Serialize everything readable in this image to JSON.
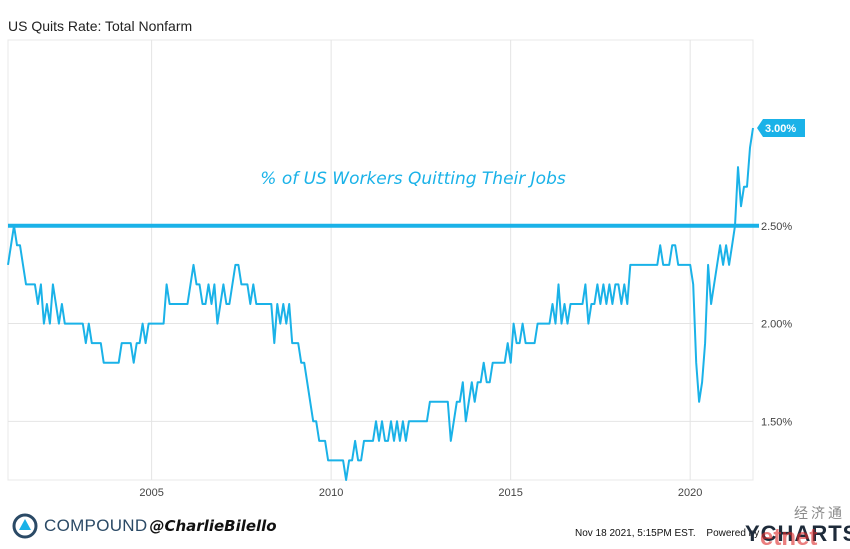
{
  "colors": {
    "series": "#1ab2e8",
    "grid": "#e4e4e4",
    "refline": "#1ab2e8",
    "brand": "#2b4a66"
  },
  "header": {
    "title": "US Quits Rate: Total Nonfarm"
  },
  "footer": {
    "brand": "COMPOUND",
    "handle": "@CharlieBilello",
    "timestamp": "Nov 18 2021, 5:15PM EST.",
    "powered_by": "Powered by",
    "provider": "YCHARTS",
    "watermark_cn": "经济通",
    "watermark_en": "etnet"
  },
  "chart_data": {
    "type": "line",
    "title": "US Quits Rate: Total Nonfarm",
    "annotation": "% of US Workers Quitting Their Jobs",
    "xlabel": "",
    "ylabel": "",
    "xlim": [
      2001.0,
      2021.75
    ],
    "ylim": [
      1.2,
      3.45
    ],
    "x_ticks": [
      2005,
      2010,
      2015,
      2020
    ],
    "y_ticks": [
      "1.50%",
      "2.00%",
      "2.50%"
    ],
    "y_tick_values": [
      1.5,
      2.0,
      2.5
    ],
    "grid": true,
    "reference_line": {
      "value": 2.5
    },
    "last_value_label": "3.00%",
    "last_value": 3.0,
    "series": [
      {
        "color": "#1ab2e8",
        "start_year": 2001.0,
        "values": [
          2.3,
          2.4,
          2.5,
          2.4,
          2.4,
          2.3,
          2.2,
          2.2,
          2.2,
          2.2,
          2.1,
          2.2,
          2.0,
          2.1,
          2.0,
          2.2,
          2.1,
          2.0,
          2.1,
          2.0,
          2.0,
          2.0,
          2.0,
          2.0,
          2.0,
          2.0,
          1.9,
          2.0,
          1.9,
          1.9,
          1.9,
          1.9,
          1.8,
          1.8,
          1.8,
          1.8,
          1.8,
          1.8,
          1.9,
          1.9,
          1.9,
          1.9,
          1.8,
          1.9,
          1.9,
          2.0,
          1.9,
          2.0,
          2.0,
          2.0,
          2.0,
          2.0,
          2.0,
          2.2,
          2.1,
          2.1,
          2.1,
          2.1,
          2.1,
          2.1,
          2.1,
          2.2,
          2.3,
          2.2,
          2.2,
          2.1,
          2.1,
          2.2,
          2.1,
          2.2,
          2.0,
          2.1,
          2.2,
          2.1,
          2.1,
          2.2,
          2.3,
          2.3,
          2.2,
          2.2,
          2.2,
          2.1,
          2.2,
          2.1,
          2.1,
          2.1,
          2.1,
          2.1,
          2.1,
          1.9,
          2.1,
          2.0,
          2.1,
          2.0,
          2.1,
          1.9,
          1.9,
          1.9,
          1.8,
          1.8,
          1.7,
          1.6,
          1.5,
          1.5,
          1.4,
          1.4,
          1.4,
          1.3,
          1.3,
          1.3,
          1.3,
          1.3,
          1.3,
          1.2,
          1.3,
          1.3,
          1.4,
          1.3,
          1.3,
          1.4,
          1.4,
          1.4,
          1.4,
          1.5,
          1.4,
          1.5,
          1.4,
          1.4,
          1.5,
          1.4,
          1.5,
          1.4,
          1.5,
          1.4,
          1.5,
          1.5,
          1.5,
          1.5,
          1.5,
          1.5,
          1.5,
          1.6,
          1.6,
          1.6,
          1.6,
          1.6,
          1.6,
          1.6,
          1.4,
          1.5,
          1.6,
          1.6,
          1.7,
          1.5,
          1.6,
          1.7,
          1.6,
          1.7,
          1.7,
          1.8,
          1.7,
          1.7,
          1.8,
          1.8,
          1.8,
          1.8,
          1.8,
          1.9,
          1.8,
          2.0,
          1.9,
          1.9,
          2.0,
          1.9,
          1.9,
          1.9,
          1.9,
          2.0,
          2.0,
          2.0,
          2.0,
          2.0,
          2.1,
          2.0,
          2.2,
          2.0,
          2.1,
          2.0,
          2.1,
          2.1,
          2.1,
          2.1,
          2.1,
          2.2,
          2.0,
          2.1,
          2.1,
          2.2,
          2.1,
          2.2,
          2.1,
          2.2,
          2.1,
          2.2,
          2.2,
          2.1,
          2.2,
          2.1,
          2.3,
          2.3,
          2.3,
          2.3,
          2.3,
          2.3,
          2.3,
          2.3,
          2.3,
          2.3,
          2.4,
          2.3,
          2.3,
          2.3,
          2.4,
          2.4,
          2.3,
          2.3,
          2.3,
          2.3,
          2.3,
          2.2,
          1.8,
          1.6,
          1.7,
          1.9,
          2.3,
          2.1,
          2.2,
          2.3,
          2.4,
          2.3,
          2.4,
          2.3,
          2.4,
          2.5,
          2.8,
          2.6,
          2.7,
          2.7,
          2.9,
          3.0
        ]
      }
    ]
  }
}
